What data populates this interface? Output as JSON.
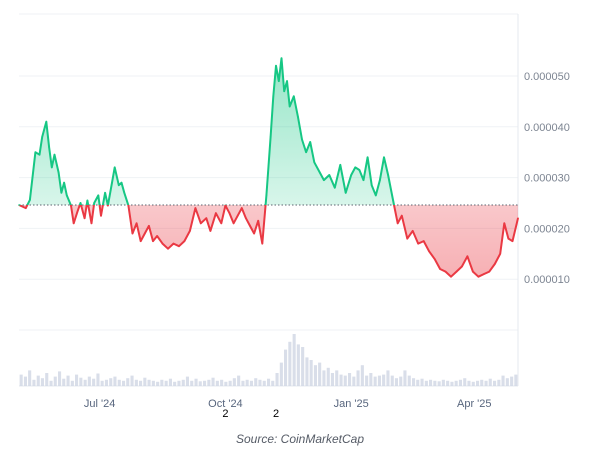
{
  "chart_data": {
    "type": "area",
    "title": "",
    "baseline": 2.46e-05,
    "ylim": [
      0,
      6.22e-05
    ],
    "grid": true,
    "y_ticks": [
      {
        "value": 1e-05,
        "label": "0.000010"
      },
      {
        "value": 2e-05,
        "label": "0.000020"
      },
      {
        "value": 3e-05,
        "label": "0.000030"
      },
      {
        "value": 4e-05,
        "label": "0.000040"
      },
      {
        "value": 5e-05,
        "label": "0.000050"
      }
    ],
    "x_ticks": [
      {
        "label": "Jul '24",
        "date": "2024-07-01"
      },
      {
        "label": "Oct '24",
        "date": "2024-10-01"
      },
      {
        "label": "Jan '25",
        "date": "2025-01-01"
      },
      {
        "label": "Apr '25",
        "date": "2025-04-01"
      }
    ],
    "x_range": [
      "2024-05-03",
      "2025-05-03"
    ],
    "event_markers": [
      {
        "label": "2",
        "date": "2024-10-01"
      },
      {
        "label": "2",
        "date": "2024-11-07"
      }
    ],
    "series": [
      {
        "x": [
          "2024-05-03",
          "2024-05-08",
          "2024-05-11",
          "2024-05-15",
          "2024-05-18",
          "2024-05-20",
          "2024-05-23",
          "2024-05-25",
          "2024-05-27",
          "2024-05-29",
          "2024-06-01",
          "2024-06-03",
          "2024-06-05",
          "2024-06-07",
          "2024-06-10",
          "2024-06-12",
          "2024-06-15",
          "2024-06-17",
          "2024-06-20",
          "2024-06-22",
          "2024-06-25",
          "2024-06-27",
          "2024-06-30",
          "2024-07-02",
          "2024-07-05",
          "2024-07-07",
          "2024-07-10",
          "2024-07-12",
          "2024-07-15",
          "2024-07-17",
          "2024-07-19",
          "2024-07-22",
          "2024-07-25",
          "2024-07-28",
          "2024-07-31",
          "2024-08-03",
          "2024-08-06",
          "2024-08-09",
          "2024-08-12",
          "2024-08-16",
          "2024-08-20",
          "2024-08-24",
          "2024-08-28",
          "2024-09-01",
          "2024-09-05",
          "2024-09-09",
          "2024-09-13",
          "2024-09-17",
          "2024-09-20",
          "2024-09-24",
          "2024-09-28",
          "2024-10-01",
          "2024-10-04",
          "2024-10-07",
          "2024-10-10",
          "2024-10-13",
          "2024-10-16",
          "2024-10-19",
          "2024-10-22",
          "2024-10-25",
          "2024-10-28",
          "2024-10-31",
          "2024-11-03",
          "2024-11-05",
          "2024-11-07",
          "2024-11-09",
          "2024-11-11",
          "2024-11-13",
          "2024-11-15",
          "2024-11-17",
          "2024-11-20",
          "2024-11-23",
          "2024-11-26",
          "2024-11-29",
          "2024-12-02",
          "2024-12-05",
          "2024-12-09",
          "2024-12-12",
          "2024-12-16",
          "2024-12-20",
          "2024-12-24",
          "2024-12-28",
          "2025-01-01",
          "2025-01-04",
          "2025-01-07",
          "2025-01-10",
          "2025-01-13",
          "2025-01-16",
          "2025-01-19",
          "2025-01-22",
          "2025-01-25",
          "2025-01-28",
          "2025-02-01",
          "2025-02-04",
          "2025-02-07",
          "2025-02-11",
          "2025-02-15",
          "2025-02-19",
          "2025-02-23",
          "2025-02-27",
          "2025-03-03",
          "2025-03-07",
          "2025-03-11",
          "2025-03-15",
          "2025-03-19",
          "2025-03-23",
          "2025-03-27",
          "2025-03-31",
          "2025-04-04",
          "2025-04-08",
          "2025-04-12",
          "2025-04-16",
          "2025-04-20",
          "2025-04-23",
          "2025-04-26",
          "2025-04-29",
          "2025-05-03"
        ],
        "values": [
          2.46e-05,
          2.4e-05,
          2.56e-05,
          3.5e-05,
          3.45e-05,
          3.8e-05,
          4.1e-05,
          3.6e-05,
          3.2e-05,
          3.45e-05,
          3.1e-05,
          2.7e-05,
          2.9e-05,
          2.65e-05,
          2.45e-05,
          2.1e-05,
          2.35e-05,
          2.5e-05,
          2.2e-05,
          2.55e-05,
          2.1e-05,
          2.5e-05,
          2.65e-05,
          2.25e-05,
          2.7e-05,
          2.45e-05,
          2.9e-05,
          3.2e-05,
          2.85e-05,
          2.9e-05,
          2.7e-05,
          2.45e-05,
          1.9e-05,
          2.1e-05,
          1.75e-05,
          1.9e-05,
          2.05e-05,
          1.75e-05,
          1.85e-05,
          1.7e-05,
          1.6e-05,
          1.7e-05,
          1.65e-05,
          1.75e-05,
          1.95e-05,
          2.4e-05,
          2.1e-05,
          2.2e-05,
          1.95e-05,
          2.3e-05,
          2.1e-05,
          2.45e-05,
          2.3e-05,
          2.1e-05,
          2.25e-05,
          2.4e-05,
          2.2e-05,
          2.05e-05,
          1.9e-05,
          2.15e-05,
          1.7e-05,
          2.65e-05,
          3.8e-05,
          4.6e-05,
          5.2e-05,
          4.9e-05,
          5.35e-05,
          4.7e-05,
          4.9e-05,
          4.4e-05,
          4.6e-05,
          4.2e-05,
          3.75e-05,
          3.5e-05,
          3.7e-05,
          3.3e-05,
          3.1e-05,
          2.95e-05,
          3.05e-05,
          2.8e-05,
          3.25e-05,
          2.7e-05,
          3.05e-05,
          3.2e-05,
          3.15e-05,
          2.95e-05,
          3.4e-05,
          2.85e-05,
          2.65e-05,
          2.95e-05,
          3.4e-05,
          3.05e-05,
          2.5e-05,
          2.1e-05,
          2.25e-05,
          1.8e-05,
          1.95e-05,
          1.7e-05,
          1.75e-05,
          1.55e-05,
          1.4e-05,
          1.2e-05,
          1.15e-05,
          1.05e-05,
          1.15e-05,
          1.25e-05,
          1.45e-05,
          1.15e-05,
          1.05e-05,
          1.1e-05,
          1.15e-05,
          1.3e-05,
          1.5e-05,
          2.1e-05,
          1.8e-05,
          1.75e-05,
          2.2e-05
        ]
      }
    ],
    "volume": [
      0.22,
      0.18,
      0.3,
      0.12,
      0.2,
      0.15,
      0.25,
      0.1,
      0.18,
      0.28,
      0.14,
      0.2,
      0.1,
      0.22,
      0.16,
      0.12,
      0.18,
      0.14,
      0.24,
      0.1,
      0.12,
      0.15,
      0.18,
      0.12,
      0.1,
      0.15,
      0.2,
      0.12,
      0.1,
      0.16,
      0.12,
      0.1,
      0.08,
      0.12,
      0.1,
      0.14,
      0.08,
      0.1,
      0.12,
      0.18,
      0.1,
      0.14,
      0.09,
      0.1,
      0.12,
      0.16,
      0.1,
      0.12,
      0.08,
      0.1,
      0.15,
      0.2,
      0.1,
      0.12,
      0.1,
      0.15,
      0.12,
      0.1,
      0.14,
      0.1,
      0.25,
      0.45,
      0.7,
      0.85,
      1.0,
      0.8,
      0.75,
      0.55,
      0.5,
      0.4,
      0.45,
      0.3,
      0.35,
      0.25,
      0.3,
      0.22,
      0.2,
      0.25,
      0.18,
      0.3,
      0.4,
      0.2,
      0.25,
      0.18,
      0.2,
      0.22,
      0.3,
      0.2,
      0.15,
      0.18,
      0.3,
      0.2,
      0.15,
      0.12,
      0.14,
      0.1,
      0.12,
      0.1,
      0.09,
      0.12,
      0.1,
      0.08,
      0.1,
      0.12,
      0.15,
      0.1,
      0.08,
      0.1,
      0.12,
      0.1,
      0.14,
      0.1,
      0.12,
      0.2,
      0.15,
      0.18,
      0.22
    ],
    "colors": {
      "up": "#16c784",
      "down": "#ea3943",
      "grid": "#eff2f5",
      "volume": "#cfd6e4"
    }
  },
  "source": "Source: CoinMarketCap"
}
